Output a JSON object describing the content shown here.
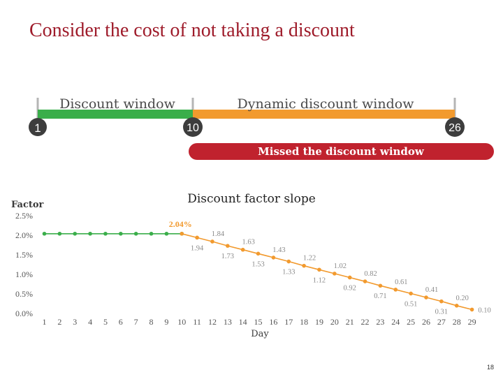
{
  "slide": {
    "title": "Consider the cost of not taking a discount",
    "page_number": "18"
  },
  "timeline": {
    "discount_window_label": "Discount window",
    "dynamic_window_label": "Dynamic discount window",
    "missed_window_label": "Missed the discount window",
    "markers": [
      "1",
      "10",
      "26"
    ],
    "colors": {
      "discount": "#3aae4a",
      "dynamic": "#f29a2e",
      "missed": "#c0222e",
      "marker": "#3d3d3d",
      "tick": "#b5b5b5"
    }
  },
  "chart_data": {
    "type": "line",
    "title": "Discount factor slope",
    "ylabel": "Factor",
    "xlabel": "Day",
    "ylim": [
      0,
      2.5
    ],
    "yticks": [
      "0.0%",
      "0.5%",
      "1.0%",
      "1.5%",
      "2.0%",
      "2.5%"
    ],
    "x": [
      1,
      2,
      3,
      4,
      5,
      6,
      7,
      8,
      9,
      10,
      11,
      12,
      13,
      14,
      15,
      16,
      17,
      18,
      19,
      20,
      21,
      22,
      23,
      24,
      25,
      26,
      27,
      28,
      29
    ],
    "series": [
      {
        "color": "#3aae4a",
        "x": [
          1,
          2,
          3,
          4,
          5,
          6,
          7,
          8,
          9,
          10
        ],
        "values": [
          2.04,
          2.04,
          2.04,
          2.04,
          2.04,
          2.04,
          2.04,
          2.04,
          2.04,
          2.04
        ]
      },
      {
        "color": "#f29a2e",
        "x": [
          10,
          11,
          12,
          13,
          14,
          15,
          16,
          17,
          18,
          19,
          20,
          21,
          22,
          23,
          24,
          25,
          26,
          27,
          28,
          29
        ],
        "values": [
          2.04,
          1.94,
          1.84,
          1.73,
          1.63,
          1.53,
          1.43,
          1.33,
          1.22,
          1.12,
          1.02,
          0.92,
          0.82,
          0.71,
          0.61,
          0.51,
          0.41,
          0.31,
          0.2,
          0.1
        ]
      }
    ],
    "annotations": [
      {
        "x": 10,
        "text": "2.04%",
        "y": 2.04
      },
      {
        "x": 11,
        "text": "1.94",
        "y": 1.94
      },
      {
        "x": 12,
        "text": "1.84",
        "y": 1.84
      },
      {
        "x": 13,
        "text": "1.73",
        "y": 1.73
      },
      {
        "x": 14,
        "text": "1.63",
        "y": 1.63
      },
      {
        "x": 15,
        "text": "1.53",
        "y": 1.53
      },
      {
        "x": 16,
        "text": "1.43",
        "y": 1.43
      },
      {
        "x": 17,
        "text": "1.33",
        "y": 1.33
      },
      {
        "x": 18,
        "text": "1.22",
        "y": 1.22
      },
      {
        "x": 19,
        "text": "1.12",
        "y": 1.12
      },
      {
        "x": 20,
        "text": "1.02",
        "y": 1.02
      },
      {
        "x": 21,
        "text": "0.92",
        "y": 0.92
      },
      {
        "x": 22,
        "text": "0.82",
        "y": 0.82
      },
      {
        "x": 23,
        "text": "0.71",
        "y": 0.71
      },
      {
        "x": 24,
        "text": "0.61",
        "y": 0.61
      },
      {
        "x": 25,
        "text": "0.51",
        "y": 0.51
      },
      {
        "x": 26,
        "text": "0.41",
        "y": 0.41
      },
      {
        "x": 27,
        "text": "0.31",
        "y": 0.31
      },
      {
        "x": 28,
        "text": "0.20",
        "y": 0.2
      },
      {
        "x": 29,
        "text": "0.10",
        "y": 0.1
      }
    ],
    "grid": false,
    "legend": "none"
  }
}
